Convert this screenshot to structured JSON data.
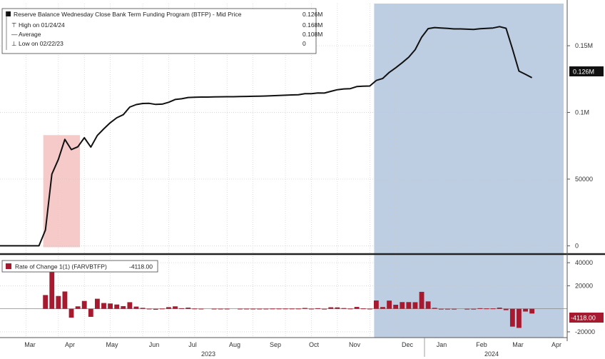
{
  "chart_data": [
    {
      "type": "line",
      "legend": {
        "title": "Reserve Balance Wednesday Close Bank Term Funding Program (BTFP) - Mid Price",
        "title_value": "0.126M",
        "high_label": "High on 01/24/24",
        "high_value": "0.168M",
        "average_label": "Average",
        "average_value": "0.108M",
        "low_label": "Low on 02/22/23",
        "low_value": "0"
      },
      "y_ticks": [
        {
          "value": 0,
          "label": "0"
        },
        {
          "value": 50000,
          "label": "50000"
        },
        {
          "value": 100000,
          "label": "0.1M"
        },
        {
          "value": 150000,
          "label": "0.15M"
        }
      ],
      "ylim": [
        -3000,
        180000
      ],
      "last_value_label": "0.126M",
      "series_color": "#111111",
      "highlight_colors": {
        "red": "#f6c4c4",
        "blue": "#b9cbe0"
      },
      "highlights": [
        {
          "color": "red",
          "from_week": 7,
          "to_week": 12
        },
        {
          "color": "blue",
          "from_week": 58,
          "to_week": 87
        }
      ],
      "series": [
        {
          "week": [
            0,
            1,
            2,
            3,
            4,
            5,
            6,
            7,
            8,
            9,
            10,
            11,
            12,
            13,
            14,
            15,
            16,
            17,
            18,
            19,
            20,
            21,
            22,
            23,
            24,
            25,
            26,
            27,
            28,
            29,
            30,
            31,
            32,
            33,
            34,
            35,
            36,
            37,
            38,
            39,
            40,
            41,
            42,
            43,
            44,
            45,
            46,
            47,
            48,
            49,
            50,
            51,
            52,
            53,
            54,
            55,
            56,
            57,
            58,
            59,
            60,
            61,
            62,
            63,
            64,
            65,
            66,
            67,
            68,
            69,
            70,
            71,
            72,
            73,
            74,
            75,
            76,
            77,
            78,
            79,
            80,
            81,
            82,
            83,
            84,
            85,
            86
          ],
          "values": [
            0,
            0,
            0,
            0,
            0,
            0,
            0,
            11900,
            53700,
            64800,
            79800,
            72100,
            74200,
            81000,
            74000,
            82700,
            87700,
            92300,
            96000,
            98300,
            104000,
            105900,
            106700,
            106800,
            106000,
            106200,
            107600,
            109700,
            110200,
            111200,
            111400,
            111500,
            111500,
            111600,
            111700,
            111800,
            111800,
            111900,
            112000,
            112100,
            112200,
            112300,
            112500,
            112700,
            112900,
            113100,
            113300,
            114000,
            114100,
            114600,
            114500,
            115800,
            117000,
            117600,
            117800,
            119400,
            119700,
            119800,
            124000,
            125500,
            130000,
            133500,
            137300,
            141400,
            147100,
            156400,
            162800,
            163600,
            163300,
            163000,
            162600,
            162600,
            162400,
            162200,
            162700,
            163000,
            163300,
            164300,
            163100,
            147600,
            131000,
            128600,
            126000
          ]
        }
      ]
    },
    {
      "type": "bar",
      "legend": {
        "label": "Rate of Change 1(1) (FARVBTFP)",
        "value": "-4118.00"
      },
      "y_ticks": [
        {
          "value": 40000,
          "label": "40000"
        },
        {
          "value": 20000,
          "label": "20000"
        },
        {
          "value": 0,
          "label": "0"
        },
        {
          "value": -20000,
          "label": "-20000"
        }
      ],
      "ylim": [
        -25000,
        45000
      ],
      "last_value_label": "-4118.00",
      "bar_color": "#a6192e",
      "series": [
        {
          "week": [
            0,
            1,
            2,
            3,
            4,
            5,
            6,
            7,
            8,
            9,
            10,
            11,
            12,
            13,
            14,
            15,
            16,
            17,
            18,
            19,
            20,
            21,
            22,
            23,
            24,
            25,
            26,
            27,
            28,
            29,
            30,
            31,
            32,
            33,
            34,
            35,
            36,
            37,
            38,
            39,
            40,
            41,
            42,
            43,
            44,
            45,
            46,
            47,
            48,
            49,
            50,
            51,
            52,
            53,
            54,
            55,
            56,
            57,
            58,
            59,
            60,
            61,
            62,
            63,
            64,
            65,
            66,
            67,
            68,
            69,
            70,
            71,
            72,
            73,
            74,
            75,
            76,
            77,
            78,
            79,
            80,
            81,
            82,
            83,
            84,
            85,
            86
          ],
          "values": [
            0,
            0,
            0,
            0,
            0,
            0,
            0,
            11900,
            31800,
            11100,
            15000,
            -7700,
            2100,
            6800,
            -7000,
            8700,
            5000,
            4600,
            3700,
            2300,
            5700,
            1900,
            800,
            100,
            -800,
            200,
            1400,
            2100,
            500,
            1000,
            200,
            100,
            0,
            100,
            100,
            100,
            0,
            100,
            100,
            100,
            100,
            100,
            200,
            200,
            200,
            200,
            200,
            700,
            100,
            500,
            -100,
            1300,
            1200,
            600,
            200,
            1600,
            300,
            100,
            7200,
            1500,
            7100,
            3500,
            5800,
            5800,
            5700,
            14700,
            6400,
            800,
            -300,
            -300,
            -400,
            0,
            -200,
            -200,
            500,
            300,
            300,
            1000,
            -1200,
            -15500,
            -16600,
            -2400,
            -4118
          ]
        }
      ],
      "x_ticks": [
        "Mar",
        "Apr",
        "May",
        "Jun",
        "Jul",
        "Aug",
        "Sep",
        "Oct",
        "Nov",
        "Dec",
        "Jan",
        "Feb",
        "Mar",
        "Apr"
      ],
      "x_year_labels": [
        "2023",
        "2024"
      ]
    }
  ]
}
